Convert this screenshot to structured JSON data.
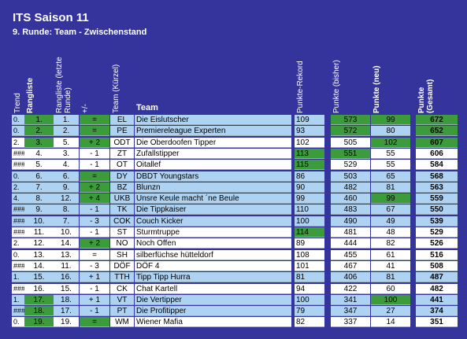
{
  "header": {
    "title": "ITS Saison 11",
    "subtitle": "9. Runde: Team - Zwischenstand"
  },
  "table": {
    "columns": [
      "Trend",
      "Rangliste",
      "Rangliste (letzte Runde)",
      "+/-",
      "Team (Kürzel)",
      "Team",
      "Punkte-Rekord",
      "Punkte (bisher)",
      "Punkte (neu)",
      "Punkte (Gesamt)"
    ],
    "rows": [
      [
        "0.",
        "1.",
        "1.",
        "=",
        "EL",
        "Die Eislutscher",
        109,
        573,
        99,
        672
      ],
      [
        "0.",
        "2.",
        "2.",
        "=",
        "PE",
        "Premiereleague Experten",
        93,
        572,
        80,
        652
      ],
      [
        "2.",
        "3.",
        "5.",
        "+ 2",
        "ODT",
        "Die Oberdoofen Tipper",
        102,
        505,
        102,
        607
      ],
      [
        "###",
        "4.",
        "3.",
        "- 1",
        "ZT",
        "Zufallstipper",
        113,
        551,
        55,
        606
      ],
      [
        "###",
        "5.",
        "4.",
        "- 1",
        "OT",
        "Oitallef",
        115,
        529,
        55,
        584
      ],
      [
        "0.",
        "6.",
        "6.",
        "=",
        "DY",
        "DBDT Youngstars",
        86,
        503,
        65,
        568
      ],
      [
        "2.",
        "7.",
        "9.",
        "+ 2",
        "BZ",
        "Blunzn",
        90,
        482,
        81,
        563
      ],
      [
        "4.",
        "8.",
        "12.",
        "+ 4",
        "UKB",
        "Unsre Keule macht ´ne Beule",
        99,
        460,
        99,
        559
      ],
      [
        "###",
        "9.",
        "8.",
        "- 1",
        "TK",
        "Die Tippkaiser",
        110,
        483,
        67,
        550
      ],
      [
        "###",
        "10.",
        "7.",
        "- 3",
        "COK",
        "Couch Kicker",
        100,
        490,
        49,
        539
      ],
      [
        "###",
        "11.",
        "10.",
        "- 1",
        "ST",
        "Sturmtruppe",
        114,
        481,
        48,
        529
      ],
      [
        "2.",
        "12.",
        "14.",
        "+ 2",
        "NO",
        "Noch Offen",
        89,
        444,
        82,
        526
      ],
      [
        "0.",
        "13.",
        "13.",
        "=",
        "SH",
        "silberfüchse hütteldorf",
        108,
        455,
        61,
        516
      ],
      [
        "###",
        "14.",
        "11.",
        "- 3",
        "DÖF",
        "DÖF 4",
        101,
        467,
        41,
        508
      ],
      [
        "1.",
        "15.",
        "16.",
        "+ 1",
        "TTH",
        "Tipp Tipp Hurra",
        81,
        406,
        81,
        487
      ],
      [
        "###",
        "16.",
        "15.",
        "- 1",
        "CK",
        "Chat Kartell",
        94,
        422,
        60,
        482
      ],
      [
        "1.",
        "17.",
        "18.",
        "+ 1",
        "VT",
        "Die Vertipper",
        100,
        341,
        100,
        441
      ],
      [
        "###",
        "18.",
        "17.",
        "- 1",
        "PT",
        "Die Profitipper",
        79,
        347,
        27,
        374
      ],
      [
        "0.",
        "19.",
        "19.",
        "=",
        "WM",
        "Wiener Mafia",
        82,
        337,
        14,
        351
      ]
    ]
  }
}
